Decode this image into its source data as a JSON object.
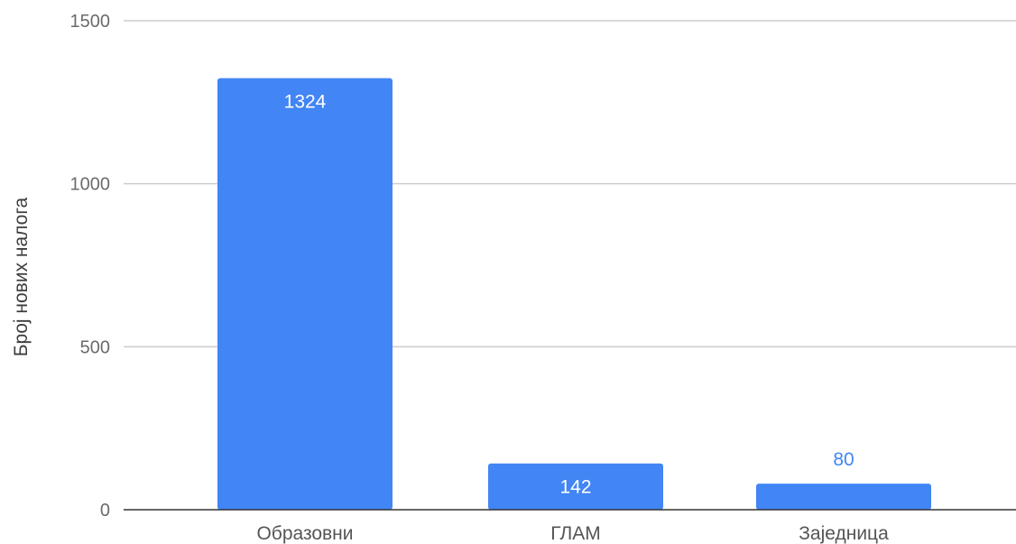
{
  "chart_data": {
    "type": "bar",
    "title": "",
    "xlabel": "",
    "ylabel": "Број нових налога",
    "categories": [
      "Образовни",
      "ГЛАМ",
      "Заједница"
    ],
    "values": [
      1324,
      142,
      80
    ],
    "data_labels": [
      "1324",
      "142",
      "80"
    ],
    "ylim": [
      0,
      1500
    ],
    "yticks": [
      0,
      500,
      1000,
      1500
    ],
    "ytick_labels": [
      "0",
      "500",
      "1000",
      "1500"
    ],
    "grid": true,
    "legend": "none",
    "colors": {
      "bar": "#4285f4",
      "label_inside": "#ffffff",
      "label_outside": "#4285f4",
      "gridline": "#cccccc",
      "baseline": "#333333"
    }
  }
}
